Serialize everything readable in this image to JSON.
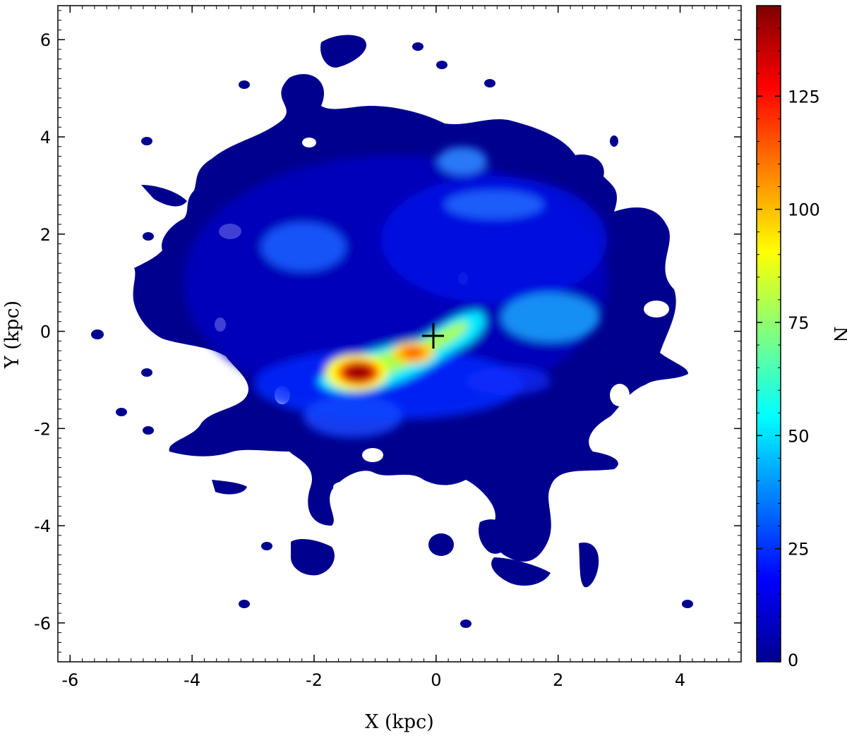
{
  "chart_data": {
    "type": "heatmap",
    "title": "",
    "xlabel": "X (kpc)",
    "ylabel": "Y (kpc)",
    "xlim": [
      -6.2,
      5.0
    ],
    "ylim": [
      -6.8,
      6.7
    ],
    "x_ticks": [
      -6,
      -4,
      -2,
      0,
      2,
      4
    ],
    "y_ticks": [
      -6,
      -4,
      -2,
      0,
      2,
      4,
      6
    ],
    "colorbar": {
      "label": "N",
      "range": [
        0,
        145
      ],
      "ticks": [
        0,
        25,
        50,
        75,
        100,
        125
      ],
      "colormap": "jet"
    },
    "marker": {
      "symbol": "+",
      "x": 0,
      "y": 0
    },
    "density_peaks": [
      {
        "x": -1.2,
        "y": -0.8,
        "value": 145
      },
      {
        "x": -0.3,
        "y": -0.45,
        "value": 100
      },
      {
        "x": 0.4,
        "y": 0.2,
        "value": 60
      },
      {
        "x": 2.0,
        "y": 0.25,
        "value": 50
      },
      {
        "x": 0.5,
        "y": 3.6,
        "value": 35
      },
      {
        "x": 1.2,
        "y": 2.8,
        "value": 30
      },
      {
        "x": -2.2,
        "y": 1.6,
        "value": 30
      },
      {
        "x": -1.5,
        "y": -1.7,
        "value": 25
      },
      {
        "x": 0.9,
        "y": -1.0,
        "value": 20
      }
    ]
  },
  "colors": {
    "background": "#ffffff",
    "low_density": "#00008f",
    "peak": "#800000",
    "axes": "#000000"
  }
}
